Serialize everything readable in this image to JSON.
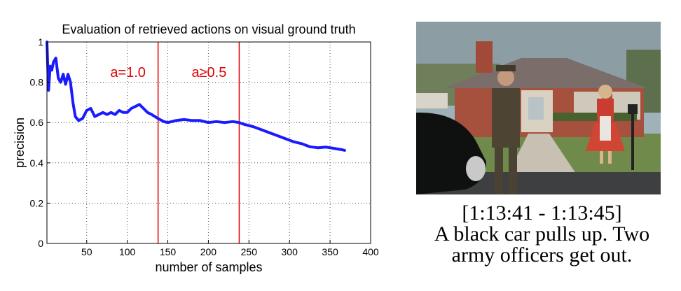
{
  "chart_data": {
    "type": "line",
    "title": "Evaluation of retrieved actions on visual ground truth",
    "xlabel": "number of samples",
    "ylabel": "precision",
    "xlim": [
      1,
      400
    ],
    "ylim": [
      0,
      1
    ],
    "xticks": [
      50,
      100,
      150,
      200,
      250,
      300,
      350,
      400
    ],
    "yticks": [
      0,
      0.2,
      0.4,
      0.6,
      0.8,
      1
    ],
    "ytick_labels": [
      "0",
      "0.2",
      "0.4",
      "0.6",
      "0.8",
      "1"
    ],
    "grid": true,
    "line_color": "#1a1aff",
    "vline_color": "#e00000",
    "vlines": [
      {
        "x": 138,
        "label": "a=1.0"
      },
      {
        "x": 238,
        "label": "a≥0.5"
      }
    ],
    "series": [
      {
        "x": [
          1,
          3,
          5,
          7,
          9,
          12,
          15,
          18,
          21,
          24,
          27,
          30,
          33,
          36,
          40,
          45,
          50,
          55,
          60,
          65,
          70,
          75,
          80,
          85,
          90,
          95,
          100,
          105,
          110,
          115,
          120,
          125,
          130,
          138,
          145,
          150,
          160,
          170,
          180,
          190,
          200,
          210,
          220,
          230,
          238,
          245,
          255,
          265,
          275,
          285,
          295,
          305,
          315,
          325,
          335,
          345,
          355,
          365,
          368
        ],
        "y": [
          1.0,
          0.76,
          0.88,
          0.86,
          0.9,
          0.92,
          0.82,
          0.8,
          0.84,
          0.79,
          0.84,
          0.8,
          0.7,
          0.63,
          0.61,
          0.62,
          0.66,
          0.67,
          0.63,
          0.64,
          0.65,
          0.64,
          0.65,
          0.64,
          0.66,
          0.65,
          0.65,
          0.67,
          0.68,
          0.69,
          0.67,
          0.65,
          0.64,
          0.62,
          0.605,
          0.6,
          0.61,
          0.615,
          0.61,
          0.61,
          0.6,
          0.605,
          0.6,
          0.605,
          0.6,
          0.59,
          0.58,
          0.565,
          0.55,
          0.535,
          0.52,
          0.505,
          0.495,
          0.48,
          0.475,
          0.478,
          0.472,
          0.465,
          0.462
        ]
      }
    ]
  },
  "caption": {
    "time_range": "[1:13:41 - 1:13:45]",
    "line1": "A black car pulls up. Two",
    "line2": "army officers get out."
  }
}
